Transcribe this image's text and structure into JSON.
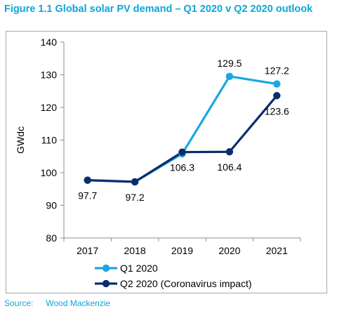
{
  "title": "Figure 1.1  Global solar PV demand – Q1 2020 v Q2 2020 outlook",
  "source_label": "Source:",
  "source_text": "Wood Mackenzie",
  "colors": {
    "q1": "#1aa7e1",
    "q2": "#0b2d6e",
    "title": "#0ea6d8"
  },
  "chart_data": {
    "type": "line",
    "ylabel": "GWdc",
    "xlabel": "",
    "ylim": [
      80,
      140
    ],
    "yticks": [
      80,
      90,
      100,
      110,
      120,
      130,
      140
    ],
    "categories": [
      "2017",
      "2018",
      "2019",
      "2020",
      "2021"
    ],
    "grid": false,
    "legend_position": "bottom",
    "series": [
      {
        "name": "Q1 2020",
        "values": [
          97.7,
          97.2,
          105.8,
          129.5,
          127.2
        ],
        "labels": [
          null,
          null,
          null,
          "129.5",
          "127.2"
        ]
      },
      {
        "name": "Q2 2020 (Coronavirus impact)",
        "values": [
          97.7,
          97.2,
          106.3,
          106.4,
          123.6
        ],
        "labels": [
          "97.7",
          "97.2",
          "106.3",
          "106.4",
          "123.6"
        ]
      }
    ]
  }
}
